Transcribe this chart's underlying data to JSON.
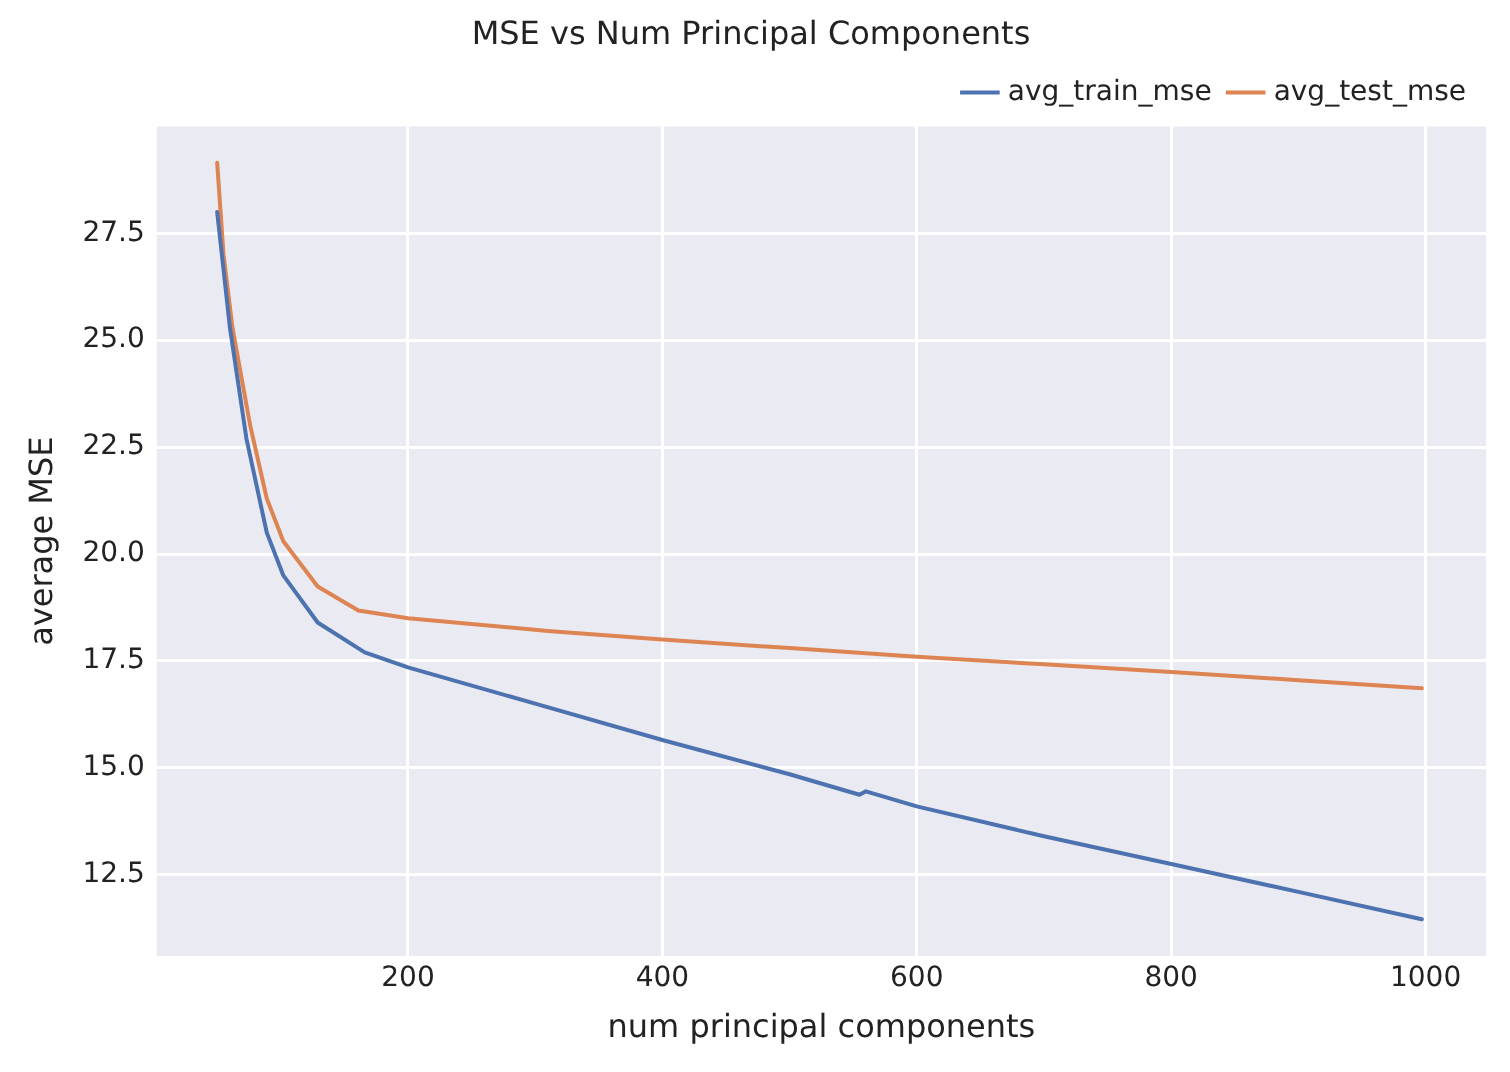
{
  "chart_data": {
    "type": "line",
    "title": "MSE vs Num Principal Components",
    "xlabel": "num principal components",
    "ylabel": "average MSE",
    "xlim": [
      2.5,
      1047.5
    ],
    "xticks": [
      200,
      400,
      600,
      800,
      1000
    ],
    "ylim": [
      10.6,
      30.0
    ],
    "yticks": [
      12.5,
      {
        "value": 15,
        "label": "15.0"
      },
      17.5,
      {
        "value": 20,
        "label": "20.0"
      },
      22.5,
      {
        "value": 25,
        "label": "25.0"
      },
      27.5
    ],
    "grid": true,
    "legend": "top right",
    "line_style": "solid",
    "marker": "none",
    "series": [
      {
        "name": "avg_train_mse",
        "color": "#4c72b0",
        "x": [
          50,
          60,
          73,
          89,
          102,
          129,
          166,
          200,
          300,
          400,
          500,
          555,
          560,
          600,
          700,
          800,
          900,
          997
        ],
        "values": [
          28.0,
          25.3,
          22.7,
          20.5,
          19.5,
          18.4,
          17.7,
          17.35,
          16.5,
          15.65,
          14.85,
          14.37,
          14.45,
          14.1,
          13.4,
          12.75,
          12.1,
          11.46
        ]
      },
      {
        "name": "avg_test_mse",
        "color": "#dd8452",
        "x": [
          50,
          55,
          62,
          76,
          89,
          102,
          129,
          161,
          200,
          310,
          400,
          500,
          600,
          700,
          800,
          900,
          997
        ],
        "values": [
          29.15,
          27.0,
          25.3,
          23.0,
          21.3,
          20.3,
          19.24,
          18.68,
          18.5,
          18.2,
          18.0,
          17.8,
          17.6,
          17.42,
          17.24,
          17.05,
          16.86
        ]
      }
    ]
  }
}
